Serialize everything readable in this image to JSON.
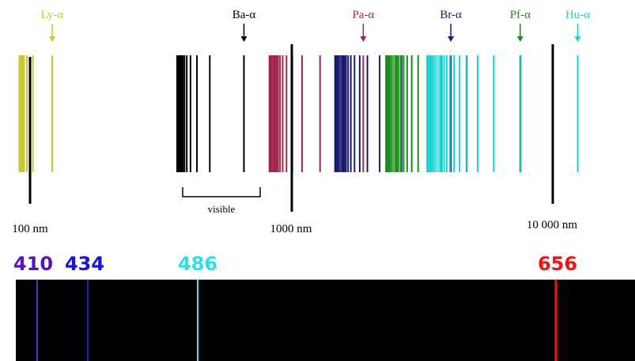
{
  "series_labels": [
    "Ly-α",
    "Ba-α",
    "Pa-α",
    "Br-α",
    "Pf-α",
    "Hu-α"
  ],
  "visible_label": "visible",
  "scale_labels": [
    "100 nm",
    "1000 nm",
    "10 000 nm"
  ],
  "spectrum_labels": [
    "410",
    "434",
    "486",
    "656"
  ]
}
